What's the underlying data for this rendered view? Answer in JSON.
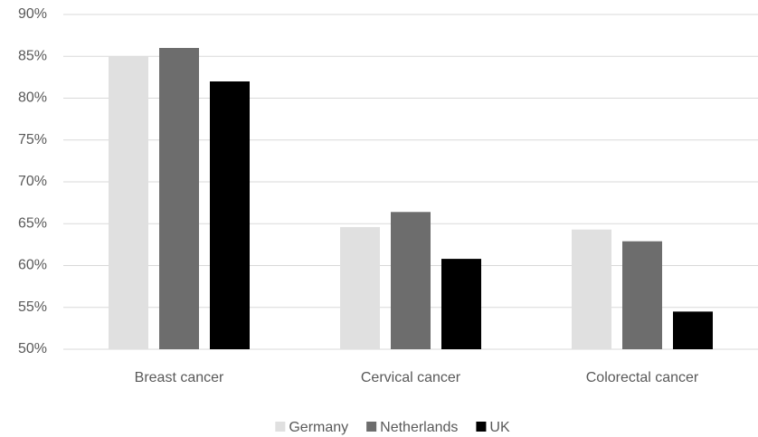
{
  "chart_data": {
    "type": "bar",
    "categories": [
      "Breast cancer",
      "Cervical cancer",
      "Colorectal cancer"
    ],
    "series": [
      {
        "name": "Germany",
        "color": "#e0e0e0",
        "values": [
          85,
          64.6,
          64.3
        ]
      },
      {
        "name": "Netherlands",
        "color": "#6d6d6d",
        "values": [
          86,
          66.4,
          62.9
        ]
      },
      {
        "name": "UK",
        "color": "#000000",
        "values": [
          82,
          60.8,
          54.5
        ]
      }
    ],
    "ylim": [
      50,
      90
    ],
    "yticks": [
      {
        "value": 50,
        "label": "50%"
      },
      {
        "value": 55,
        "label": "55%"
      },
      {
        "value": 60,
        "label": "60%"
      },
      {
        "value": 65,
        "label": "65%"
      },
      {
        "value": 70,
        "label": "70%"
      },
      {
        "value": 75,
        "label": "75%"
      },
      {
        "value": 80,
        "label": "80%"
      },
      {
        "value": 85,
        "label": "85%"
      },
      {
        "value": 90,
        "label": "90%"
      }
    ],
    "grid": true,
    "legend": "bottom"
  }
}
